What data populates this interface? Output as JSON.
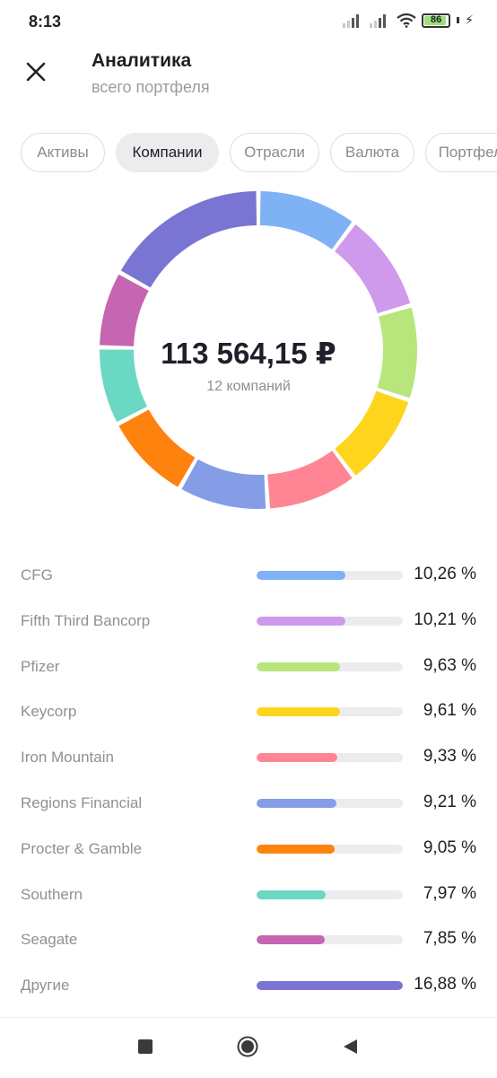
{
  "status": {
    "time": "8:13",
    "battery": "86"
  },
  "header": {
    "title": "Аналитика",
    "subtitle": "всего портфеля"
  },
  "tabs": [
    {
      "label": "Активы",
      "active": false
    },
    {
      "label": "Компании",
      "active": true
    },
    {
      "label": "Отрасли",
      "active": false
    },
    {
      "label": "Валюта",
      "active": false
    },
    {
      "label": "Портфели",
      "active": false
    }
  ],
  "summary": {
    "amount": "113 564,15 ₽",
    "count_label": "12 компаний"
  },
  "chart_data": {
    "type": "pie",
    "categories": [
      "CFG",
      "Fifth Third Bancorp",
      "Pfizer",
      "Keycorp",
      "Iron Mountain",
      "Regions Financial",
      "Procter & Gamble",
      "Southern",
      "Seagate",
      "Другие"
    ],
    "values": [
      10.26,
      10.21,
      9.63,
      9.61,
      9.33,
      9.21,
      9.05,
      7.97,
      7.85,
      16.88
    ],
    "value_labels": [
      "10,26 %",
      "10,21 %",
      "9,63 %",
      "9,61 %",
      "9,33 %",
      "9,21 %",
      "9,05 %",
      "7,97 %",
      "7,85 %",
      "16,88 %"
    ],
    "colors": [
      "#7eb2f5",
      "#cf9aeb",
      "#b8e57c",
      "#fed51c",
      "#ff8594",
      "#849de6",
      "#fd820e",
      "#6ad8c3",
      "#c665b2",
      "#7a75d3"
    ]
  },
  "navbar": {
    "icons": [
      "square-nav-icon",
      "home-nav-icon",
      "back-nav-icon"
    ]
  }
}
